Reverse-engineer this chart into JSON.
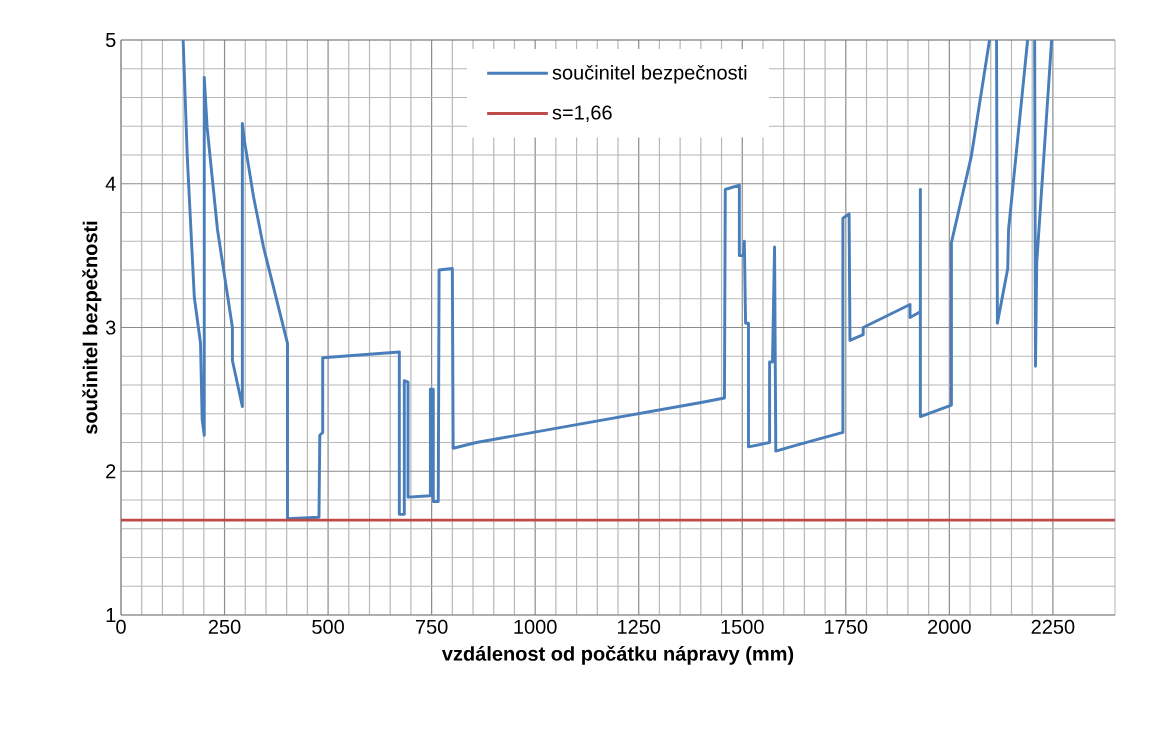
{
  "chart_data": {
    "type": "line",
    "xlabel": "vzdálenost od počátku nápravy (mm)",
    "ylabel": "součinitel bezpečnosti",
    "xlim": [
      0,
      2400
    ],
    "ylim": [
      1,
      5
    ],
    "xticks": [
      0,
      250,
      500,
      750,
      1000,
      1250,
      1500,
      1750,
      2000,
      2250
    ],
    "yticks": [
      1,
      2,
      3,
      4,
      5
    ],
    "grid": true,
    "legend": "top",
    "marker": "none",
    "line_style": "solid",
    "series": [
      {
        "name": "součinitel bezpečnosti",
        "color": "#4a7ebb",
        "x": [
          150,
          160,
          177,
          192,
          196,
          201,
          201,
          208,
          233,
          269,
          269,
          293,
          293,
          298,
          320,
          344,
          402,
          402,
          478,
          480,
          487,
          487,
          672,
          672,
          684,
          684,
          693,
          693,
          747,
          747,
          754,
          754,
          766,
          768,
          800,
          802,
          858,
          1404,
          1457,
          1459,
          1493,
          1493,
          1503,
          1505,
          1508,
          1515,
          1515,
          1566,
          1566,
          1573,
          1578,
          1581,
          1629,
          1743,
          1743,
          1758,
          1760,
          1792,
          1792,
          1905,
          1905,
          1930,
          1930,
          1930,
          2005,
          2005,
          2053,
          2097,
          2105,
          2114,
          2116,
          2141,
          2143,
          2189,
          2198,
          2206,
          2208,
          2211,
          2247
        ],
        "values": [
          5.0,
          4.19,
          3.21,
          2.89,
          2.36,
          2.25,
          4.74,
          4.39,
          3.68,
          3.0,
          2.77,
          2.45,
          4.42,
          4.3,
          3.91,
          3.56,
          2.89,
          1.67,
          1.68,
          2.25,
          2.27,
          2.79,
          2.83,
          1.7,
          1.7,
          2.63,
          2.62,
          1.82,
          1.83,
          2.57,
          2.57,
          1.79,
          1.79,
          3.4,
          3.41,
          2.16,
          2.2,
          2.48,
          2.51,
          3.96,
          3.99,
          3.5,
          3.5,
          3.6,
          3.03,
          3.03,
          2.17,
          2.2,
          2.76,
          2.76,
          3.56,
          2.14,
          2.18,
          2.27,
          3.76,
          3.79,
          2.91,
          2.95,
          3.0,
          3.16,
          3.07,
          3.11,
          3.96,
          2.38,
          2.46,
          3.59,
          4.19,
          5.0,
          null,
          5.0,
          3.03,
          3.41,
          3.68,
          5.0,
          null,
          5.0,
          2.73,
          3.45,
          5.0
        ]
      },
      {
        "name": "s=1,66",
        "color": "#be4b48",
        "x": [
          0,
          2400
        ],
        "values": [
          1.66,
          1.66
        ]
      }
    ]
  }
}
